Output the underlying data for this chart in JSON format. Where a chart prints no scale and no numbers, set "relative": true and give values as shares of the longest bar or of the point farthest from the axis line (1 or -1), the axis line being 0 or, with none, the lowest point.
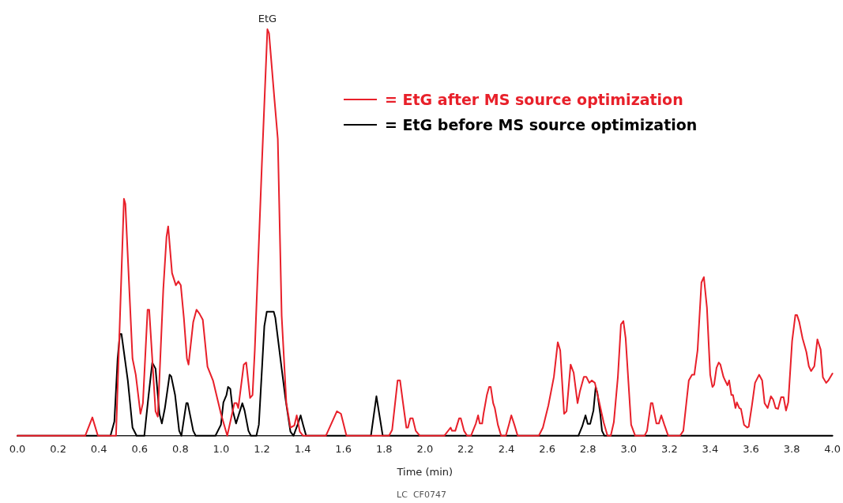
{
  "chart_data": {
    "type": "line",
    "relative": true,
    "xlabel": "Time (min)",
    "xlim": [
      0,
      4
    ],
    "xticks": [
      {
        "value": 0,
        "label": "0.0"
      },
      {
        "value": 0.2,
        "label": "0.2"
      },
      {
        "value": 0.4,
        "label": "0.4"
      },
      {
        "value": 0.6,
        "label": "0.6"
      },
      {
        "value": 0.8,
        "label": "0.8"
      },
      {
        "value": 1,
        "label": "1.0"
      },
      {
        "value": 1.2,
        "label": "1.2"
      },
      {
        "value": 1.4,
        "label": "1.4"
      },
      {
        "value": 1.6,
        "label": "1.6"
      },
      {
        "value": 1.8,
        "label": "1.8"
      },
      {
        "value": 2,
        "label": "2.0"
      },
      {
        "value": 2.2,
        "label": "2.2"
      },
      {
        "value": 2.4,
        "label": "2.4"
      },
      {
        "value": 2.6,
        "label": "2.6"
      },
      {
        "value": 2.8,
        "label": "2.8"
      },
      {
        "value": 3,
        "label": "3.0"
      },
      {
        "value": 3.2,
        "label": "3.2"
      },
      {
        "value": 3.4,
        "label": "3.4"
      },
      {
        "value": 3.6,
        "label": "3.6"
      },
      {
        "value": 3.8,
        "label": "3.8"
      },
      {
        "value": 4,
        "label": "4.0"
      }
    ],
    "grid": false,
    "legend": "top",
    "marker": "none",
    "line_style": "solid",
    "annotations": [
      {
        "text": "EtG",
        "x": 1.227,
        "y": 1.0
      },
      "LC  CF0747"
    ],
    "series": [
      {
        "name": "= EtG after MS source optimization",
        "color": "#e8202a",
        "x": [
          0,
          0.333,
          0.368,
          0.395,
          0.484,
          0.523,
          0.53,
          0.565,
          0.581,
          0.604,
          0.616,
          0.639,
          0.647,
          0.678,
          0.689,
          0.716,
          0.732,
          0.74,
          0.759,
          0.778,
          0.79,
          0.802,
          0.817,
          0.832,
          0.84,
          0.863,
          0.879,
          0.894,
          0.91,
          0.933,
          0.96,
          0.999,
          1.03,
          1.065,
          1.076,
          1.084,
          1.111,
          1.123,
          1.142,
          1.154,
          1.165,
          1.2,
          1.227,
          1.235,
          1.262,
          1.278,
          1.297,
          1.32,
          1.34,
          1.359,
          1.371,
          1.386,
          1.402,
          1.514,
          1.568,
          1.588,
          1.615,
          1.824,
          1.839,
          1.866,
          1.878,
          1.89,
          1.909,
          1.917,
          1.928,
          1.94,
          1.955,
          1.975,
          2.095,
          2.126,
          2.133,
          2.149,
          2.168,
          2.176,
          2.192,
          2.207,
          2.226,
          2.25,
          2.261,
          2.269,
          2.281,
          2.288,
          2.304,
          2.315,
          2.323,
          2.335,
          2.343,
          2.358,
          2.374,
          2.397,
          2.412,
          2.424,
          2.439,
          2.455,
          2.559,
          2.579,
          2.606,
          2.633,
          2.652,
          2.664,
          2.683,
          2.695,
          2.715,
          2.73,
          2.749,
          2.761,
          2.78,
          2.792,
          2.807,
          2.819,
          2.834,
          2.85,
          2.877,
          2.896,
          2.912,
          2.927,
          2.947,
          2.962,
          2.974,
          2.985,
          3.012,
          3.032,
          3.078,
          3.09,
          3.109,
          3.117,
          3.136,
          3.148,
          3.16,
          3.175,
          3.194,
          3.252,
          3.268,
          3.295,
          3.311,
          3.322,
          3.338,
          3.357,
          3.369,
          3.384,
          3.4,
          3.411,
          3.419,
          3.431,
          3.442,
          3.45,
          3.465,
          3.473,
          3.485,
          3.493,
          3.504,
          3.512,
          3.524,
          3.531,
          3.543,
          3.551,
          3.566,
          3.582,
          3.589,
          3.605,
          3.62,
          3.64,
          3.655,
          3.667,
          3.682,
          3.698,
          3.709,
          3.721,
          3.733,
          3.748,
          3.76,
          3.772,
          3.783,
          3.802,
          3.818,
          3.826,
          3.837,
          3.853,
          3.872,
          3.884,
          3.895,
          3.911,
          3.926,
          3.942,
          3.953,
          3.969,
          3.98,
          4.0
        ],
        "values": [
          0,
          0,
          0.045,
          0,
          0,
          0.583,
          0.57,
          0.19,
          0.15,
          0.054,
          0.08,
          0.31,
          0.31,
          0.06,
          0.047,
          0.36,
          0.49,
          0.515,
          0.4,
          0.37,
          0.38,
          0.37,
          0.29,
          0.19,
          0.175,
          0.28,
          0.31,
          0.3,
          0.285,
          0.17,
          0.136,
          0.054,
          0,
          0.08,
          0.08,
          0.068,
          0.175,
          0.18,
          0.093,
          0.1,
          0.21,
          0.67,
          1.0,
          0.99,
          0.825,
          0.73,
          0.295,
          0.08,
          0.02,
          0.025,
          0.05,
          0.01,
          0,
          0,
          0.06,
          0.054,
          0,
          0,
          0.014,
          0.136,
          0.136,
          0.09,
          0.02,
          0.02,
          0.043,
          0.043,
          0.012,
          0,
          0,
          0.02,
          0.012,
          0.012,
          0.043,
          0.043,
          0.012,
          0,
          0,
          0.03,
          0.05,
          0.03,
          0.03,
          0.055,
          0.1,
          0.12,
          0.12,
          0.08,
          0.068,
          0.027,
          0,
          0,
          0.027,
          0.05,
          0.027,
          0,
          0,
          0.02,
          0.075,
          0.145,
          0.23,
          0.21,
          0.054,
          0.06,
          0.175,
          0.155,
          0.08,
          0.11,
          0.145,
          0.145,
          0.13,
          0.136,
          0.13,
          0.095,
          0.033,
          0,
          0,
          0.033,
          0.145,
          0.274,
          0.282,
          0.24,
          0.027,
          0,
          0,
          0.012,
          0.08,
          0.08,
          0.03,
          0.03,
          0.05,
          0.027,
          0,
          0,
          0.012,
          0.136,
          0.15,
          0.15,
          0.21,
          0.377,
          0.39,
          0.315,
          0.15,
          0.12,
          0.125,
          0.167,
          0.18,
          0.175,
          0.145,
          0.136,
          0.124,
          0.136,
          0.1,
          0.1,
          0.068,
          0.082,
          0.068,
          0.066,
          0.027,
          0.02,
          0.022,
          0.075,
          0.13,
          0.15,
          0.136,
          0.08,
          0.068,
          0.097,
          0.089,
          0.068,
          0.066,
          0.095,
          0.095,
          0.062,
          0.082,
          0.233,
          0.297,
          0.297,
          0.28,
          0.24,
          0.206,
          0.171,
          0.159,
          0.171,
          0.237,
          0.212,
          0.144,
          0.13,
          0.136,
          0.153
        ]
      },
      {
        "name": "= EtG before MS source optimization",
        "color": "#000000",
        "x": [
          0,
          0.457,
          0.476,
          0.492,
          0.503,
          0.511,
          0.542,
          0.565,
          0.585,
          0.623,
          0.643,
          0.662,
          0.678,
          0.697,
          0.709,
          0.724,
          0.747,
          0.755,
          0.774,
          0.794,
          0.805,
          0.829,
          0.836,
          0.863,
          0.875,
          0.972,
          0.999,
          1.011,
          1.026,
          1.034,
          1.045,
          1.057,
          1.073,
          1.104,
          1.115,
          1.134,
          1.146,
          1.173,
          1.185,
          1.212,
          1.224,
          1.258,
          1.266,
          1.297,
          1.316,
          1.34,
          1.355,
          1.375,
          1.39,
          1.402,
          1.417,
          1.735,
          1.762,
          1.793,
          2.753,
          2.772,
          2.788,
          2.799,
          2.811,
          2.827,
          2.838,
          2.846,
          2.861,
          2.869,
          2.881,
          4.0
        ],
        "values": [
          0,
          0,
          0.035,
          0.19,
          0.25,
          0.25,
          0.136,
          0.02,
          0,
          0,
          0.095,
          0.18,
          0.165,
          0.054,
          0.03,
          0.068,
          0.15,
          0.146,
          0.1,
          0.012,
          0,
          0.08,
          0.08,
          0.012,
          0,
          0,
          0.027,
          0.082,
          0.1,
          0.12,
          0.115,
          0.062,
          0.03,
          0.08,
          0.062,
          0.012,
          0,
          0,
          0.027,
          0.27,
          0.305,
          0.305,
          0.29,
          0.165,
          0.09,
          0.01,
          0,
          0.027,
          0.05,
          0.027,
          0,
          0,
          0.097,
          0,
          0,
          0.023,
          0.05,
          0.029,
          0.029,
          0.062,
          0.12,
          0.106,
          0.052,
          0.012,
          0,
          0
        ]
      }
    ]
  }
}
